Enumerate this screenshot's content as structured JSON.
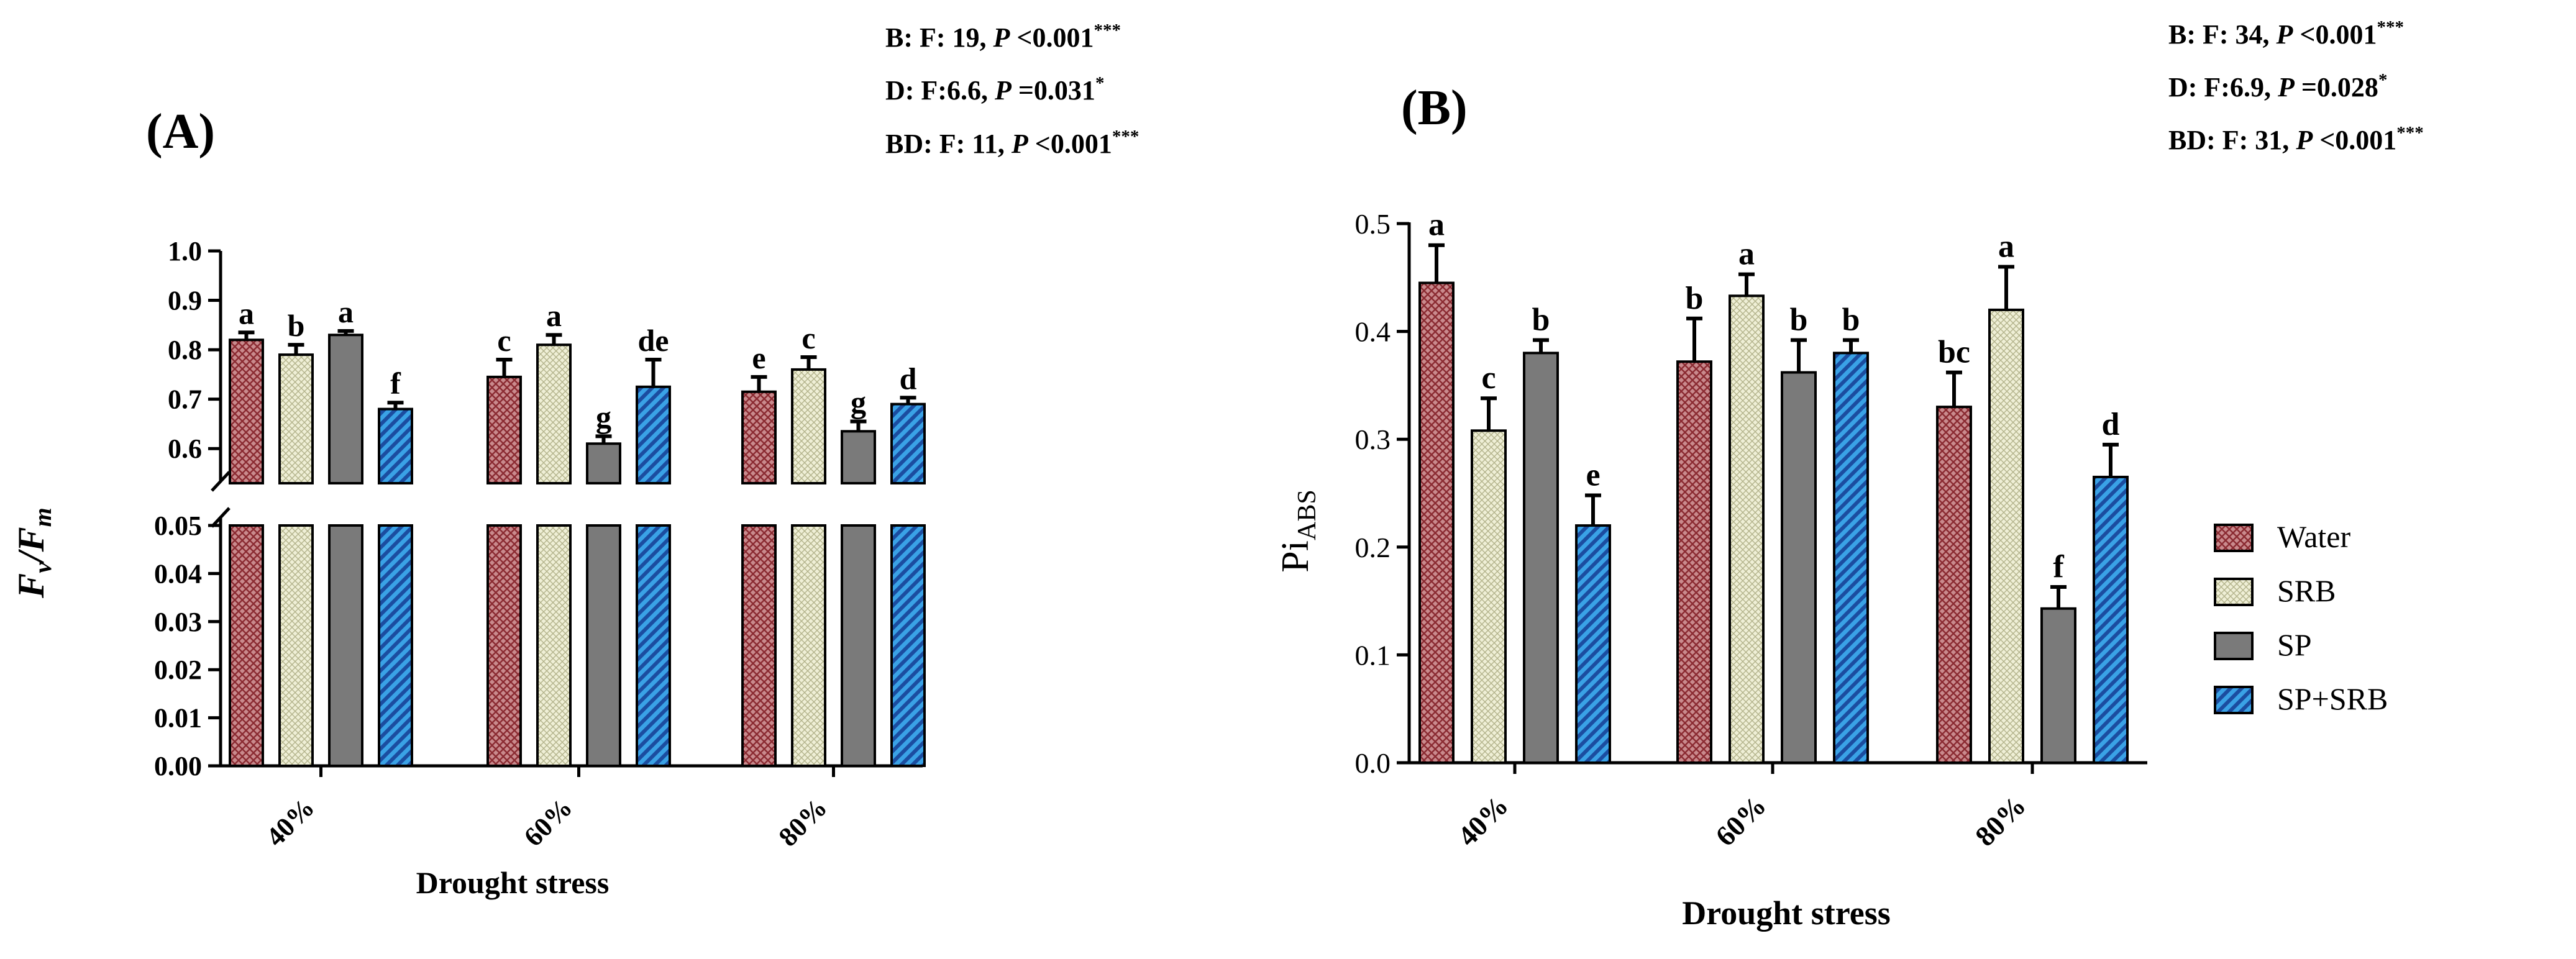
{
  "legend": {
    "entries": [
      "Water",
      "SRB",
      "SP",
      "SP+SRB"
    ],
    "placement": "right"
  },
  "colors": {
    "water_fill": "#c98a8d",
    "water_hatch": "#8b2b32",
    "srb_fill": "#efefd6",
    "srb_hatch": "#b3b38c",
    "sp_fill": "#7a7a7a",
    "sprb_fill": "#3aa2e6",
    "sprb_hatch": "#1b4da0",
    "ink": "#000000"
  },
  "chart_data": [
    {
      "type": "bar",
      "panel_label": "(A)",
      "ylabel_main": "F",
      "ylabel_sub1": "v",
      "ylabel_mid": "/F",
      "ylabel_sub2": "m",
      "xlabel": "Drought stress",
      "categories": [
        "40%",
        "60%",
        "80%"
      ],
      "series": [
        {
          "name": "Water",
          "values": [
            0.82,
            0.745,
            0.715
          ],
          "errors": [
            0.015,
            0.035,
            0.03
          ],
          "letters": [
            "a",
            "c",
            "e"
          ]
        },
        {
          "name": "SRB",
          "values": [
            0.79,
            0.81,
            0.76
          ],
          "errors": [
            0.02,
            0.02,
            0.025
          ],
          "letters": [
            "b",
            "a",
            "c"
          ]
        },
        {
          "name": "SP",
          "values": [
            0.83,
            0.61,
            0.635
          ],
          "errors": [
            0.008,
            0.015,
            0.02
          ],
          "letters": [
            "a",
            "g",
            "g"
          ]
        },
        {
          "name": "SP+SRB",
          "values": [
            0.68,
            0.725,
            0.69
          ],
          "errors": [
            0.013,
            0.055,
            0.013
          ],
          "letters": [
            "f",
            "de",
            "d"
          ]
        }
      ],
      "axis_break": {
        "lower": [
          0,
          0.05
        ],
        "upper": [
          0.55,
          1.0
        ]
      },
      "lower_ticks": [
        "0.00",
        "0.01",
        "0.02",
        "0.03",
        "0.04",
        "0.05"
      ],
      "upper_ticks": [
        "0.6",
        "0.7",
        "0.8",
        "0.9",
        "1.0"
      ],
      "stats": [
        {
          "label": "B: F: 19, ",
          "p": "P",
          "rest": " <0.001",
          "sig": "***"
        },
        {
          "label": "D: F:6.6, ",
          "p": "P",
          "rest": " =0.031",
          "sig": "*"
        },
        {
          "label": "BD: F: 11, ",
          "p": "P",
          "rest": " <0.001",
          "sig": "***"
        }
      ]
    },
    {
      "type": "bar",
      "panel_label": "(B)",
      "ylabel_main": "Pi",
      "ylabel_sub": "ABS",
      "xlabel": "Drought stress",
      "categories": [
        "40%",
        "60%",
        "80%"
      ],
      "ylim": [
        0,
        0.5
      ],
      "ticks": [
        "0.0",
        "0.1",
        "0.2",
        "0.3",
        "0.4",
        "0.5"
      ],
      "series": [
        {
          "name": "Water",
          "values": [
            0.445,
            0.372,
            0.33
          ],
          "errors": [
            0.035,
            0.04,
            0.032
          ],
          "letters": [
            "a",
            "b",
            "bc"
          ]
        },
        {
          "name": "SRB",
          "values": [
            0.308,
            0.433,
            0.42
          ],
          "errors": [
            0.03,
            0.02,
            0.04
          ],
          "letters": [
            "c",
            "a",
            "a"
          ]
        },
        {
          "name": "SP",
          "values": [
            0.38,
            0.362,
            0.143
          ],
          "errors": [
            0.012,
            0.03,
            0.02
          ],
          "letters": [
            "b",
            "b",
            "f"
          ]
        },
        {
          "name": "SP+SRB",
          "values": [
            0.22,
            0.38,
            0.265
          ],
          "errors": [
            0.028,
            0.012,
            0.03
          ],
          "letters": [
            "e",
            "b",
            "d"
          ]
        }
      ],
      "stats": [
        {
          "label": "B: F: 34, ",
          "p": "P",
          "rest": " <0.001",
          "sig": "***"
        },
        {
          "label": "D: F:6.9, ",
          "p": "P",
          "rest": " =0.028",
          "sig": "*"
        },
        {
          "label": "BD: F: 31, ",
          "p": "P",
          "rest": " <0.001",
          "sig": "***"
        }
      ]
    }
  ]
}
